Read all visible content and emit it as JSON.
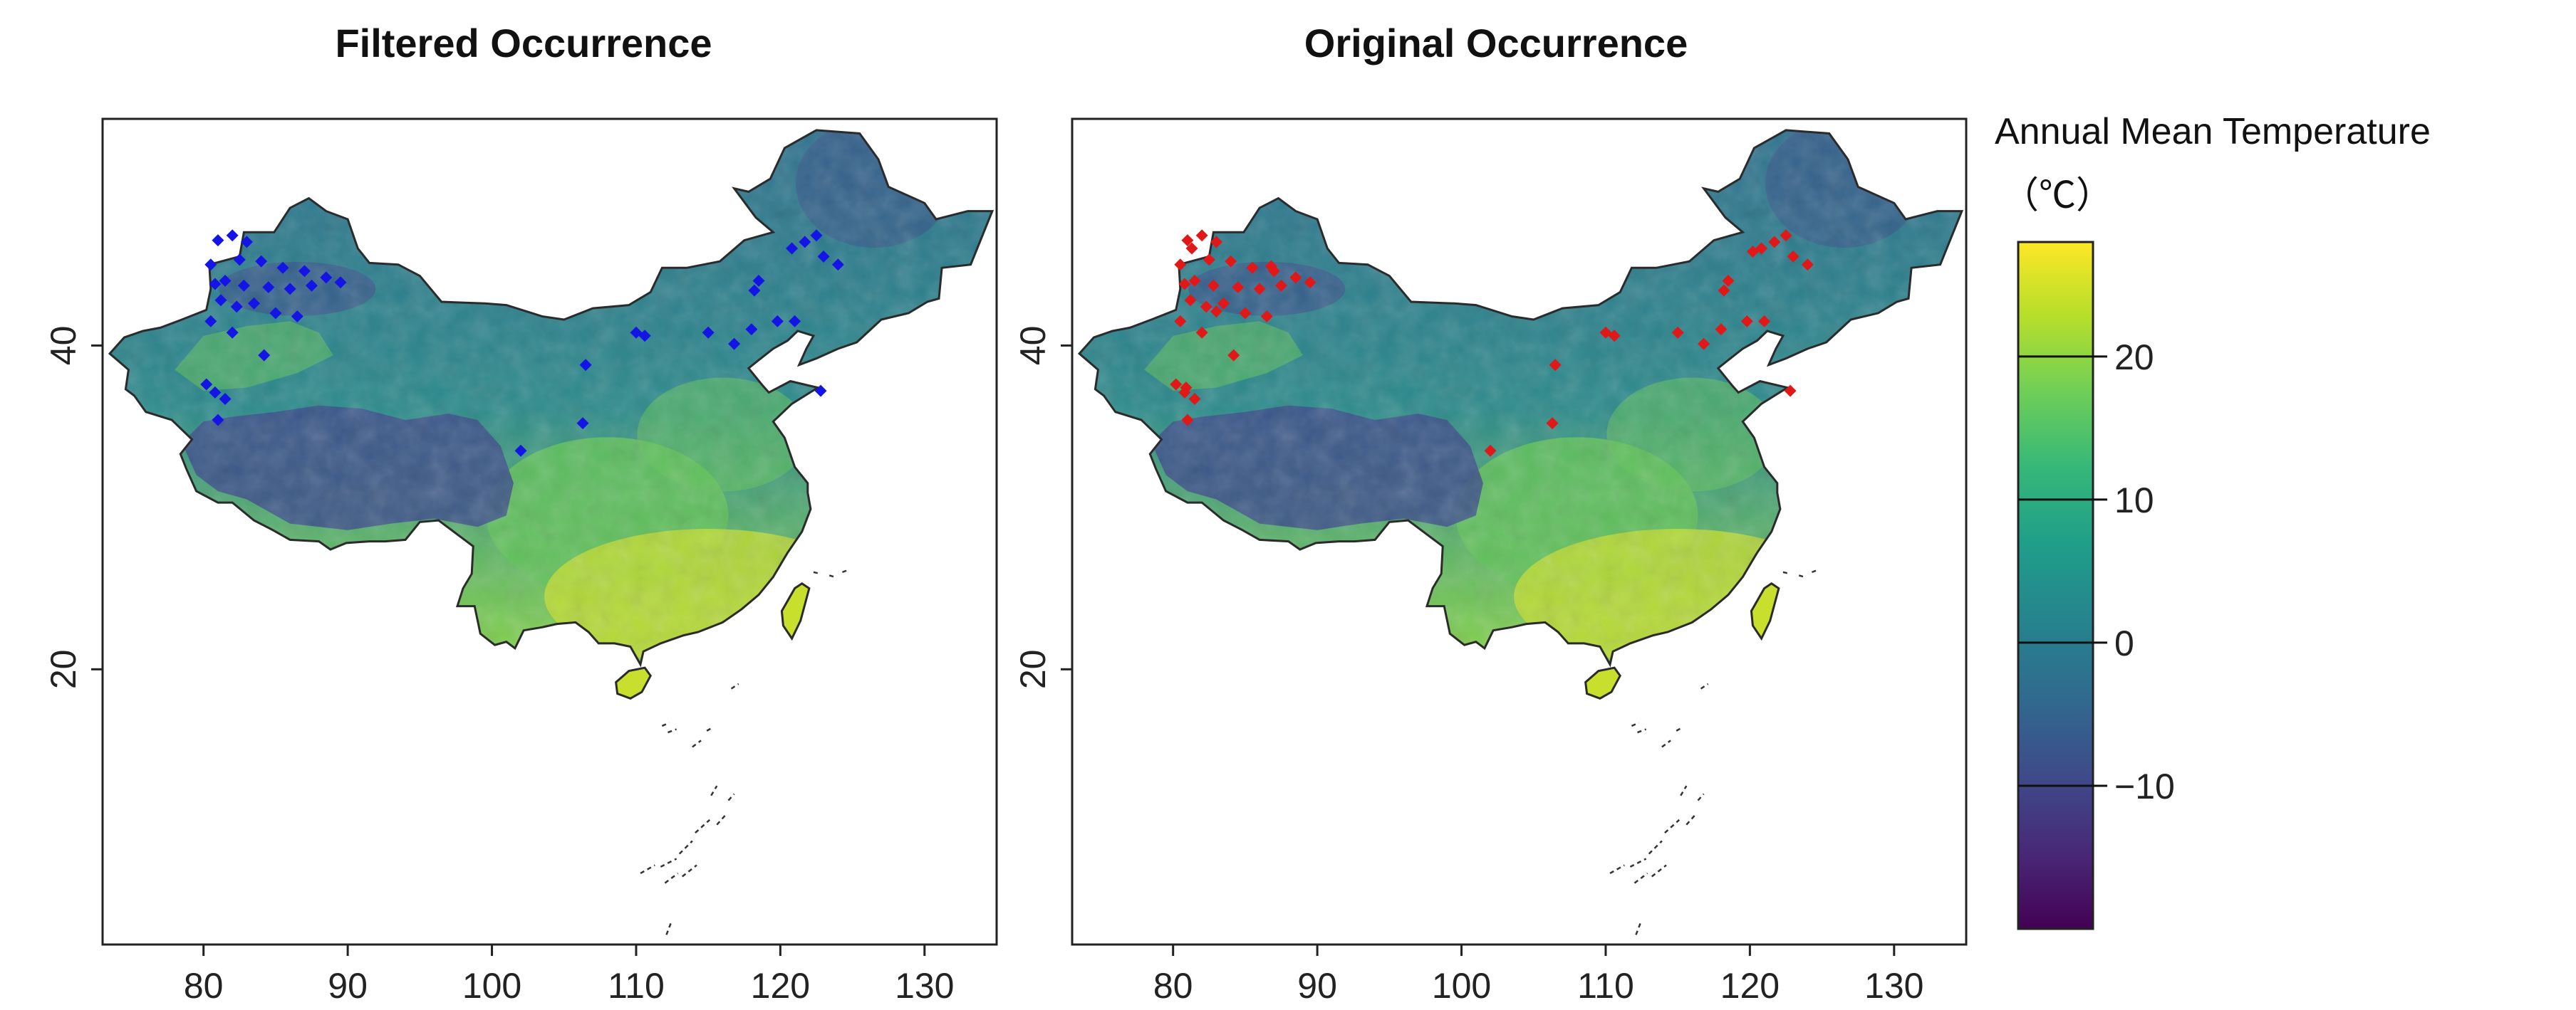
{
  "panels": [
    {
      "title": "Filtered Occurrence",
      "point_color": "#1414e6",
      "x_ticks": [
        "80",
        "90",
        "100",
        "110",
        "120",
        "130"
      ],
      "y_ticks": [
        "20",
        "40"
      ]
    },
    {
      "title": "Original Occurrence",
      "point_color": "#e01818",
      "x_ticks": [
        "80",
        "90",
        "100",
        "110",
        "120",
        "130"
      ],
      "y_ticks": [
        "20",
        "40"
      ]
    }
  ],
  "colorbar": {
    "title": "Annual Mean Temperature",
    "unit": "（℃）",
    "ticks": [
      "20",
      "10",
      "0",
      "−10"
    ],
    "range": [
      -20,
      28
    ],
    "colors": [
      "#440154",
      "#482878",
      "#3e4a89",
      "#31688e",
      "#26828e",
      "#1f9e89",
      "#35b779",
      "#6ece58",
      "#b5de2b",
      "#fde725"
    ]
  },
  "map": {
    "lon_range": [
      73,
      135
    ],
    "lat_range": [
      3,
      54
    ],
    "palette": {
      "cold": "#3b4c8a",
      "mid": "#2f7f8c",
      "warm": "#62c25a",
      "hot": "#c9df2e"
    }
  },
  "occurrences": {
    "filtered": [
      [
        81.0,
        46.5
      ],
      [
        82.0,
        46.8
      ],
      [
        83.0,
        46.4
      ],
      [
        80.5,
        45.0
      ],
      [
        82.5,
        45.3
      ],
      [
        84.0,
        45.2
      ],
      [
        85.5,
        44.8
      ],
      [
        87.0,
        44.6
      ],
      [
        88.5,
        44.2
      ],
      [
        89.5,
        43.9
      ],
      [
        80.8,
        43.8
      ],
      [
        81.5,
        44.0
      ],
      [
        82.8,
        43.7
      ],
      [
        84.5,
        43.6
      ],
      [
        86.0,
        43.5
      ],
      [
        87.5,
        43.7
      ],
      [
        81.2,
        42.8
      ],
      [
        82.3,
        42.4
      ],
      [
        83.5,
        42.6
      ],
      [
        85.0,
        42.0
      ],
      [
        86.5,
        41.8
      ],
      [
        80.5,
        41.5
      ],
      [
        82.0,
        40.8
      ],
      [
        84.2,
        39.4
      ],
      [
        80.2,
        37.6
      ],
      [
        80.8,
        37.1
      ],
      [
        81.5,
        36.7
      ],
      [
        81.0,
        35.4
      ],
      [
        106.5,
        38.8
      ],
      [
        106.3,
        35.2
      ],
      [
        102.0,
        33.5
      ],
      [
        110.0,
        40.8
      ],
      [
        110.6,
        40.6
      ],
      [
        115.0,
        40.8
      ],
      [
        116.8,
        40.1
      ],
      [
        118.0,
        41.0
      ],
      [
        118.5,
        44.0
      ],
      [
        119.8,
        41.5
      ],
      [
        121.0,
        41.5
      ],
      [
        120.8,
        46.0
      ],
      [
        121.7,
        46.4
      ],
      [
        122.5,
        46.8
      ],
      [
        123.0,
        45.5
      ],
      [
        124.0,
        45.0
      ],
      [
        118.2,
        43.4
      ],
      [
        122.8,
        37.2
      ]
    ],
    "original": [
      [
        81.0,
        46.5
      ],
      [
        82.0,
        46.8
      ],
      [
        83.0,
        46.4
      ],
      [
        80.5,
        45.0
      ],
      [
        82.5,
        45.3
      ],
      [
        84.0,
        45.2
      ],
      [
        85.5,
        44.8
      ],
      [
        87.0,
        44.6
      ],
      [
        88.5,
        44.2
      ],
      [
        89.5,
        43.9
      ],
      [
        80.8,
        43.8
      ],
      [
        81.5,
        44.0
      ],
      [
        82.8,
        43.7
      ],
      [
        84.5,
        43.6
      ],
      [
        86.0,
        43.5
      ],
      [
        87.5,
        43.7
      ],
      [
        81.2,
        42.8
      ],
      [
        82.3,
        42.4
      ],
      [
        83.5,
        42.6
      ],
      [
        85.0,
        42.0
      ],
      [
        86.5,
        41.8
      ],
      [
        80.5,
        41.5
      ],
      [
        82.0,
        40.8
      ],
      [
        84.2,
        39.4
      ],
      [
        80.2,
        37.6
      ],
      [
        80.8,
        37.1
      ],
      [
        81.5,
        36.7
      ],
      [
        81.0,
        35.4
      ],
      [
        106.5,
        38.8
      ],
      [
        106.3,
        35.2
      ],
      [
        102.0,
        33.5
      ],
      [
        110.0,
        40.8
      ],
      [
        110.6,
        40.6
      ],
      [
        115.0,
        40.8
      ],
      [
        116.8,
        40.1
      ],
      [
        118.0,
        41.0
      ],
      [
        118.5,
        44.0
      ],
      [
        119.8,
        41.5
      ],
      [
        121.0,
        41.5
      ],
      [
        120.8,
        46.0
      ],
      [
        121.7,
        46.4
      ],
      [
        122.5,
        46.8
      ],
      [
        123.0,
        45.5
      ],
      [
        124.0,
        45.0
      ],
      [
        118.2,
        43.4
      ],
      [
        122.8,
        37.2
      ],
      [
        81.3,
        46.0
      ],
      [
        86.8,
        44.9
      ],
      [
        83.0,
        42.1
      ],
      [
        80.9,
        37.4
      ],
      [
        120.2,
        45.8
      ]
    ]
  }
}
